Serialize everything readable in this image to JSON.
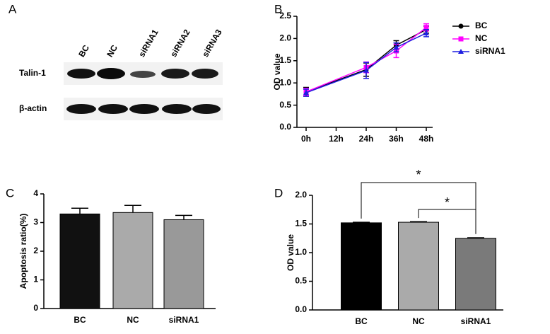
{
  "blot": {
    "panel": "A",
    "lanes": [
      "BC",
      "NC",
      "siRNA1",
      "siRNA2",
      "siRNA3"
    ],
    "rows": [
      "Talin-1",
      "β-actin"
    ]
  },
  "chart_data": [
    {
      "type": "line",
      "panel": "B",
      "ylabel": "OD value",
      "x": [
        0,
        24,
        36,
        48
      ],
      "xlim": [
        0,
        48
      ],
      "xticks": [
        {
          "value": 0,
          "label": "0h"
        },
        {
          "value": 12,
          "label": "12h"
        },
        {
          "value": 24,
          "label": "24h"
        },
        {
          "value": 36,
          "label": "36h"
        },
        {
          "value": 48,
          "label": "48h"
        }
      ],
      "ylim": [
        0,
        2.5
      ],
      "yticks": [
        {
          "value": 0,
          "label": "0.0"
        },
        0.5,
        {
          "value": 1,
          "label": "1.0"
        },
        1.5,
        {
          "value": 2,
          "label": "2.0"
        },
        2.5
      ],
      "legend": "right",
      "series": [
        {
          "name": "BC",
          "color": "#000000",
          "marker": "circle",
          "values": [
            0.8,
            1.3,
            1.85,
            2.2
          ],
          "errors": [
            0.1,
            0.15,
            0.1,
            0.08
          ]
        },
        {
          "name": "NC",
          "color": "#ff00ff",
          "marker": "square",
          "values": [
            0.8,
            1.35,
            1.72,
            2.25
          ],
          "errors": [
            0.08,
            0.12,
            0.15,
            0.08
          ]
        },
        {
          "name": "siRNA1",
          "color": "#1f1fe0",
          "marker": "triangle",
          "values": [
            0.78,
            1.28,
            1.8,
            2.12
          ],
          "errors": [
            0.08,
            0.18,
            0.1,
            0.08
          ]
        }
      ]
    },
    {
      "type": "bar",
      "panel": "C",
      "ylabel": "Apoptosis ratio(%)",
      "categories": [
        "BC",
        "NC",
        "siRNA1"
      ],
      "values": [
        3.3,
        3.35,
        3.1
      ],
      "errors": [
        0.2,
        0.25,
        0.15
      ],
      "colors": [
        "#111111",
        "#aaaaaa",
        "#999999"
      ],
      "ylim": [
        0,
        4
      ],
      "yticks": [
        0,
        1,
        2,
        3,
        4
      ]
    },
    {
      "type": "bar",
      "panel": "D",
      "ylabel": "OD value",
      "categories": [
        "BC",
        "NC",
        "siRNA1"
      ],
      "values": [
        1.52,
        1.53,
        1.25
      ],
      "errors": [
        0.01,
        0.01,
        0.01
      ],
      "colors": [
        "#000000",
        "#aaaaaa",
        "#7a7a7a"
      ],
      "ylim": [
        0,
        2.0
      ],
      "yticks": [
        {
          "value": 0,
          "label": "0.0"
        },
        0.5,
        {
          "value": 1,
          "label": "1.0"
        },
        1.5,
        {
          "value": 2,
          "label": "2.0"
        }
      ],
      "annotations": [
        "*",
        "*"
      ]
    }
  ]
}
